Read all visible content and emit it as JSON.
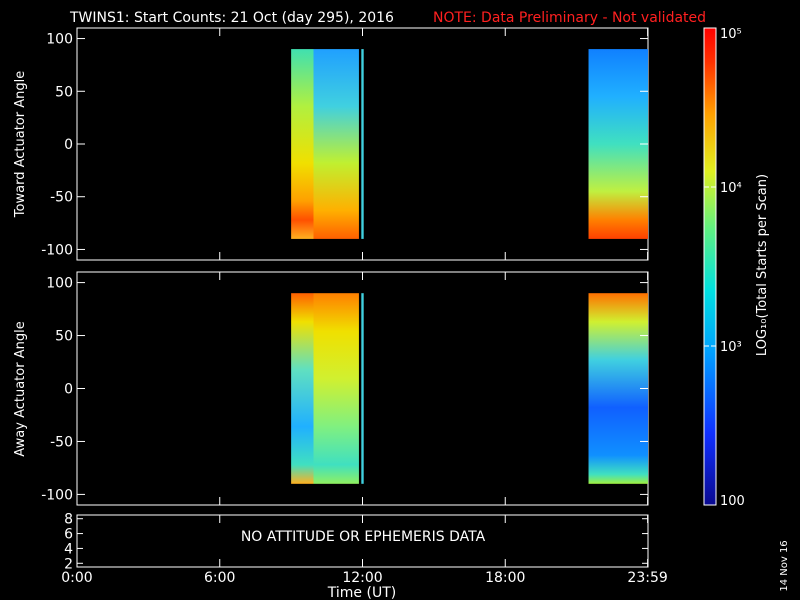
{
  "title": {
    "main": "TWINS1: Start Counts: 21 Oct (day 295), 2016",
    "note": "NOTE: Data Preliminary - Not validated",
    "note_color": "#ff2020"
  },
  "stamp": "14 Nov 16",
  "footer_message": "NO ATTITUDE OR EPHEMERIS DATA",
  "chart_data": [
    {
      "type": "heatmap",
      "panel": "top",
      "ylabel": "Toward Actuator Angle",
      "ylim": [
        -110,
        110
      ],
      "yticks": [
        100,
        50,
        0,
        -50,
        -100
      ],
      "xlim_hours": [
        0,
        24
      ],
      "data_blocks": [
        {
          "t_start": 9.0,
          "t_end": 11.85,
          "angle": [
            -90,
            90
          ]
        },
        {
          "t_start": 11.95,
          "t_end": 12.05,
          "angle": [
            -90,
            90
          ]
        },
        {
          "t_start": 21.5,
          "t_end": 24.0,
          "angle": [
            -90,
            90
          ]
        }
      ]
    },
    {
      "type": "heatmap",
      "panel": "middle",
      "ylabel": "Away Actuator Angle",
      "ylim": [
        -110,
        110
      ],
      "yticks": [
        100,
        50,
        0,
        -50,
        -100
      ],
      "xlim_hours": [
        0,
        24
      ],
      "data_blocks": [
        {
          "t_start": 9.0,
          "t_end": 11.85,
          "angle": [
            -90,
            90
          ]
        },
        {
          "t_start": 11.95,
          "t_end": 12.05,
          "angle": [
            -90,
            90
          ]
        },
        {
          "t_start": 21.5,
          "t_end": 24.0,
          "angle": [
            -90,
            90
          ]
        }
      ]
    },
    {
      "type": "line",
      "panel": "bottom",
      "yticks": [
        "8",
        "6",
        "4",
        "2"
      ],
      "ylim": [
        1.5,
        8.5
      ],
      "xlabel": "Time (UT)",
      "xticks": [
        {
          "label": "0:00",
          "hour": 0
        },
        {
          "label": "6:00",
          "hour": 6
        },
        {
          "label": "12:00",
          "hour": 12
        },
        {
          "label": "18:00",
          "hour": 18
        },
        {
          "label": "23:59",
          "hour": 23.983
        }
      ]
    },
    {
      "type": "colorbar",
      "label": "LOG₁₀(Total Starts per Scan)",
      "scale": "log",
      "range": [
        100,
        100000
      ],
      "ticks": [
        {
          "label": "10⁵",
          "value": 100000
        },
        {
          "label": "10⁴",
          "value": 10000
        },
        {
          "label": "10³",
          "value": 1000
        },
        {
          "label": "100",
          "value": 100
        }
      ]
    }
  ]
}
